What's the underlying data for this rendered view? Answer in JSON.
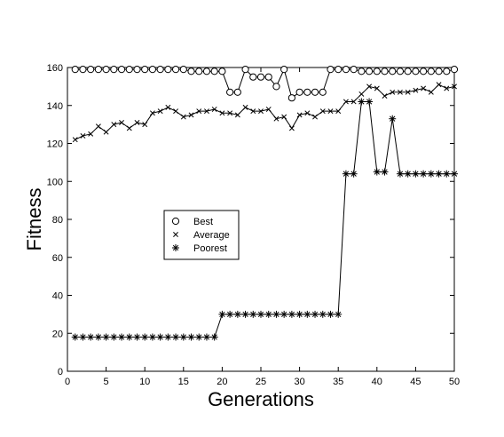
{
  "chart_data": {
    "type": "line",
    "title": "",
    "xlabel": "Generations",
    "ylabel": "Fitness",
    "xlim": [
      0,
      50
    ],
    "ylim": [
      0,
      160
    ],
    "xticks": [
      0,
      5,
      10,
      15,
      20,
      25,
      30,
      35,
      40,
      45,
      50
    ],
    "yticks": [
      0,
      20,
      40,
      60,
      80,
      100,
      120,
      140,
      160
    ],
    "grid": false,
    "legend_placement": "center-left",
    "x": [
      1,
      2,
      3,
      4,
      5,
      6,
      7,
      8,
      9,
      10,
      11,
      12,
      13,
      14,
      15,
      16,
      17,
      18,
      19,
      20,
      21,
      22,
      23,
      24,
      25,
      26,
      27,
      28,
      29,
      30,
      31,
      32,
      33,
      34,
      35,
      36,
      37,
      38,
      39,
      40,
      41,
      42,
      43,
      44,
      45,
      46,
      47,
      48,
      49,
      50
    ],
    "series": [
      {
        "name": "Best",
        "marker": "circle",
        "values": [
          159,
          159,
          159,
          159,
          159,
          159,
          159,
          159,
          159,
          159,
          159,
          159,
          159,
          159,
          159,
          158,
          158,
          158,
          158,
          158,
          147,
          147,
          159,
          155,
          155,
          155,
          150,
          159,
          144,
          147,
          147,
          147,
          147,
          159,
          159,
          159,
          159,
          158,
          158,
          158,
          158,
          158,
          158,
          158,
          158,
          158,
          158,
          158,
          158,
          159
        ]
      },
      {
        "name": "Average",
        "marker": "x",
        "values": [
          122,
          124,
          125,
          129,
          126,
          130,
          131,
          128,
          131,
          130,
          136,
          137,
          139,
          137,
          134,
          135,
          137,
          137,
          138,
          136,
          136,
          135,
          139,
          137,
          137,
          138,
          133,
          134,
          128,
          135,
          136,
          134,
          137,
          137,
          137,
          142,
          142,
          146,
          150,
          149,
          145,
          147,
          147,
          147,
          148,
          149,
          147,
          151,
          149,
          150
        ]
      },
      {
        "name": "Poorest",
        "marker": "star",
        "values": [
          18,
          18,
          18,
          18,
          18,
          18,
          18,
          18,
          18,
          18,
          18,
          18,
          18,
          18,
          18,
          18,
          18,
          18,
          18,
          30,
          30,
          30,
          30,
          30,
          30,
          30,
          30,
          30,
          30,
          30,
          30,
          30,
          30,
          30,
          30,
          104,
          104,
          142,
          142,
          105,
          105,
          133,
          104,
          104,
          104,
          104,
          104,
          104,
          104,
          104
        ]
      }
    ]
  }
}
